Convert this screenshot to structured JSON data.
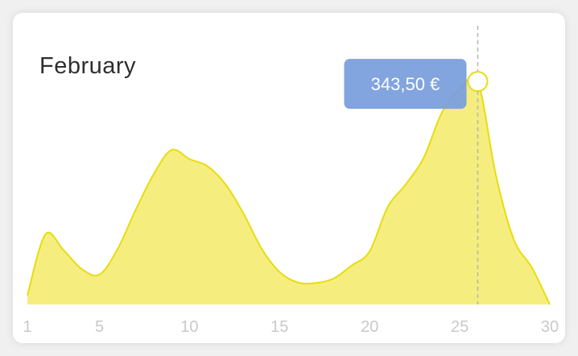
{
  "chart_data": {
    "type": "area",
    "title": "February",
    "xlabel": "",
    "ylabel": "",
    "xlim": [
      1,
      30
    ],
    "ylim": [
      0,
      340
    ],
    "x_ticks": [
      1,
      5,
      10,
      15,
      20,
      25,
      30
    ],
    "grid": false,
    "series": [
      {
        "x": [
          1,
          2,
          3,
          4,
          5,
          6,
          7,
          8,
          9,
          10,
          11,
          12,
          13,
          14,
          15,
          16,
          17,
          18,
          19,
          20,
          21,
          22,
          23,
          24,
          25,
          26,
          27,
          28,
          29,
          30
        ],
        "values": [
          14,
          108,
          84,
          55,
          46,
          85,
          145,
          200,
          238,
          224,
          213,
          185,
          140,
          86,
          50,
          34,
          33,
          40,
          60,
          82,
          150,
          185,
          226,
          295,
          331,
          343.5,
          200,
          100,
          57,
          0
        ],
        "color": "#f5ee7f",
        "line_color": "#e8dc10"
      }
    ],
    "highlight": {
      "x": 26,
      "value": 343.5,
      "label": "343,50 €"
    },
    "colors": {
      "tooltip": "#7b9fdd",
      "marker_stroke": "#e8dc10",
      "guide": "#b5b5b5",
      "tick": "#c9c9c9"
    }
  }
}
